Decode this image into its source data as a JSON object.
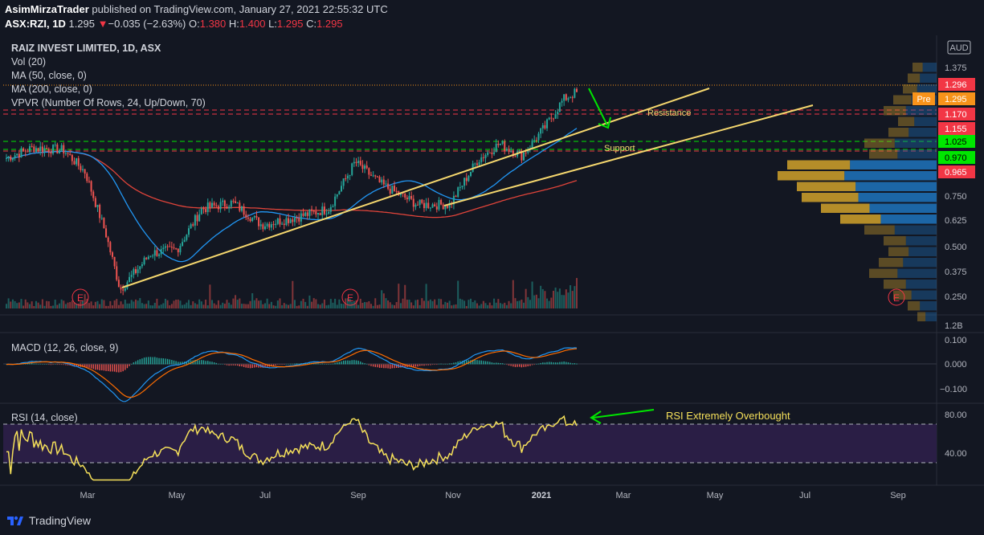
{
  "header": {
    "author": "AsimMirzaTrader",
    "published": "published on TradingView.com, January 27, 2021 22:55:32 UTC",
    "symbol": "ASX:RZI, 1D",
    "last": "1.295",
    "change_arrow": "▼",
    "change": "−0.035 (−2.63%)",
    "o_label": "O:",
    "o": "1.380",
    "h_label": "H:",
    "h": "1.400",
    "l_label": "L:",
    "l": "1.295",
    "c_label": "C:",
    "c": "1.295"
  },
  "legend": {
    "title": "RAIZ INVEST LIMITED, 1D, ASX",
    "vol": "Vol (20)",
    "ma50": "MA (50, close, 0)",
    "ma200": "MA (200, close, 0)",
    "vpvr": "VPVR (Number Of Rows, 24, Up/Down, 70)"
  },
  "macd_label": "MACD (12, 26, close, 9)",
  "rsi_label": "RSI (14, close)",
  "annotations": {
    "resistance": "Resistance",
    "support": "Support",
    "rsi_note": "RSI Extremely Overbought",
    "earnings_marker": "E"
  },
  "price_axis": {
    "currency": "AUD",
    "ticks": [
      "1.375",
      "0.750",
      "0.625",
      "0.500",
      "0.375",
      "0.250"
    ],
    "labels": [
      {
        "text": "1.296",
        "bg": "#f23645"
      },
      {
        "text": "1.295",
        "bg": "#f7931a"
      },
      {
        "text": "1.170",
        "bg": "#f23645"
      },
      {
        "text": "1.155",
        "bg": "#f23645"
      },
      {
        "text": "1.025",
        "bg": "#00e600"
      },
      {
        "text": "0.970",
        "bg": "#00e600"
      },
      {
        "text": "0.965",
        "bg": "#f23645"
      }
    ],
    "pre_label": "Pre"
  },
  "volume_axis": {
    "ticks": [
      "1.2B"
    ]
  },
  "macd_axis": {
    "ticks": [
      "0.100",
      "0.000",
      "−0.100"
    ]
  },
  "rsi_axis": {
    "ticks": [
      "80.00",
      "40.00"
    ]
  },
  "time_axis": {
    "labels": [
      "Mar",
      "May",
      "Jul",
      "Sep",
      "Nov",
      "2021",
      "Mar",
      "May",
      "Jul",
      "Sep"
    ]
  },
  "footer": {
    "brand": "TradingView"
  },
  "colors": {
    "background": "#131722",
    "up": "#26a69a",
    "down": "#ef5350",
    "ma50": "#2196f3",
    "ma200": "#e0443a",
    "trendline": "#f5d76e",
    "rsi": "#f5e05a",
    "macd": "#2196f3",
    "signal": "#ff6d00",
    "vpvr_up": "#1e6fb5",
    "vpvr_down": "#c79a2a"
  },
  "chart_data": {
    "type": "candlestick",
    "symbol": "ASX:RZI",
    "interval": "1D",
    "currency": "AUD",
    "price_path": [
      {
        "date": "2020-01-02",
        "close": 0.97
      },
      {
        "date": "2020-01-20",
        "close": 1.02
      },
      {
        "date": "2020-02-10",
        "close": 1.01
      },
      {
        "date": "2020-02-25",
        "close": 0.9
      },
      {
        "date": "2020-03-10",
        "close": 0.6
      },
      {
        "date": "2020-03-20",
        "close": 0.32
      },
      {
        "date": "2020-04-10",
        "close": 0.5
      },
      {
        "date": "2020-04-28",
        "close": 0.52
      },
      {
        "date": "2020-05-15",
        "close": 0.72
      },
      {
        "date": "2020-06-05",
        "close": 0.75
      },
      {
        "date": "2020-06-25",
        "close": 0.64
      },
      {
        "date": "2020-07-20",
        "close": 0.68
      },
      {
        "date": "2020-08-10",
        "close": 0.72
      },
      {
        "date": "2020-08-28",
        "close": 0.95
      },
      {
        "date": "2020-09-15",
        "close": 0.84
      },
      {
        "date": "2020-10-10",
        "close": 0.74
      },
      {
        "date": "2020-11-01",
        "close": 0.74
      },
      {
        "date": "2020-11-20",
        "close": 0.96
      },
      {
        "date": "2020-12-05",
        "close": 1.04
      },
      {
        "date": "2020-12-20",
        "close": 0.98
      },
      {
        "date": "2021-01-05",
        "close": 1.12
      },
      {
        "date": "2021-01-18",
        "close": 1.26
      },
      {
        "date": "2021-01-27",
        "close": 1.295
      }
    ],
    "ohlc_last": {
      "open": 1.38,
      "high": 1.4,
      "low": 1.295,
      "close": 1.295
    },
    "resistance": 1.17,
    "support": 1.025,
    "support2": 0.97,
    "ylim": [
      0.22,
      1.44
    ],
    "macd_ylim": [
      -0.15,
      0.12
    ],
    "rsi_ylim": [
      20,
      95
    ],
    "rsi_levels": [
      70,
      30
    ]
  }
}
